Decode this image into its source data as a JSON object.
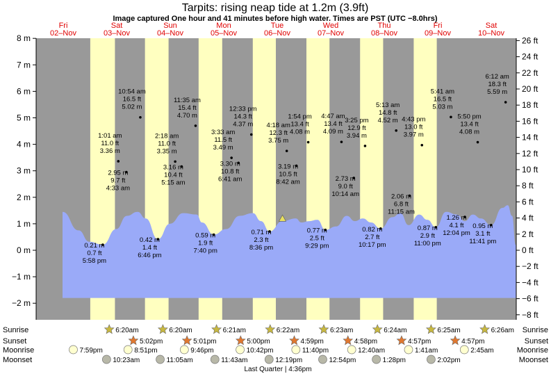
{
  "title": "Tarpits: rising  neap tide at 1.2m (3.9ft)",
  "subtitle": "Image captured One hour and 41 minutes before high water. Times are PST (UTC −8.0hrs)",
  "days": [
    {
      "name": "Fri",
      "date": "02–Nov"
    },
    {
      "name": "Sat",
      "date": "03–Nov"
    },
    {
      "name": "Sun",
      "date": "04–Nov"
    },
    {
      "name": "Mon",
      "date": "05–Nov"
    },
    {
      "name": "Tue",
      "date": "06–Nov"
    },
    {
      "name": "Wed",
      "date": "07–Nov"
    },
    {
      "name": "Thu",
      "date": "08–Nov"
    },
    {
      "name": "Fri",
      "date": "09–Nov"
    },
    {
      "name": "Sat",
      "date": "10–Nov"
    }
  ],
  "colors": {
    "night": "#999999",
    "day": "#ffffc0",
    "water": "#9aaaf8",
    "text_red": "#e00000",
    "sun_star": "#c8b840",
    "sunset_star": "#e07830"
  },
  "chart_data": {
    "type": "area",
    "ylabel_left": "m",
    "ylabel_right": "ft",
    "ylim": [
      -2.5,
      8.0
    ],
    "left_ticks": [
      "−2 m",
      "−1 m",
      "0 m",
      "1 m",
      "2 m",
      "3 m",
      "4 m",
      "5 m",
      "6 m",
      "7 m",
      "8 m"
    ],
    "left_tick_values": [
      -2,
      -1,
      0,
      1,
      2,
      3,
      4,
      5,
      6,
      7,
      8
    ],
    "right_ticks": [
      "−8 ft",
      "−6 ft",
      "−4 ft",
      "−2 ft",
      "0 ft",
      "2 ft",
      "4 ft",
      "6 ft",
      "8 ft",
      "10 ft",
      "12 ft",
      "14 ft",
      "16 ft",
      "18 ft",
      "20 ft",
      "22 ft",
      "24 ft",
      "26 ft"
    ],
    "right_tick_values": [
      -8,
      -6,
      -4,
      -2,
      0,
      2,
      4,
      6,
      8,
      10,
      12,
      14,
      16,
      18,
      20,
      22,
      24,
      26
    ],
    "current_level_m": 1.2,
    "tides": [
      {
        "time": "5:58 pm",
        "ft": "0.7 ft",
        "m": "0.21 m",
        "value": 0.21,
        "t": 0.75,
        "type": "low"
      },
      {
        "time": "1:01 am",
        "ft": "11.0 ft",
        "m": "3.36 m",
        "value": 3.36,
        "t": 1.04,
        "type": "high"
      },
      {
        "time": "4:33 am",
        "ft": "9.7 ft",
        "m": "2.95 m",
        "value": 2.95,
        "t": 1.19,
        "type": "low"
      },
      {
        "time": "10:54 am",
        "ft": "16.5 ft",
        "m": "5.02 m",
        "value": 5.02,
        "t": 1.45,
        "type": "high"
      },
      {
        "time": "6:46 pm",
        "ft": "1.4 ft",
        "m": "0.42 m",
        "value": 0.42,
        "t": 1.78,
        "type": "low"
      },
      {
        "time": "2:18 am",
        "ft": "11.0 ft",
        "m": "3.35 m",
        "value": 3.35,
        "t": 2.1,
        "type": "high"
      },
      {
        "time": "5:15 am",
        "ft": "10.4 ft",
        "m": "3.16 m",
        "value": 3.16,
        "t": 2.22,
        "type": "low"
      },
      {
        "time": "11:35 am",
        "ft": "15.4 ft",
        "m": "4.70 m",
        "value": 4.7,
        "t": 2.48,
        "type": "high"
      },
      {
        "time": "7:40 pm",
        "ft": "1.9 ft",
        "m": "0.59 m",
        "value": 0.59,
        "t": 2.82,
        "type": "low"
      },
      {
        "time": "3:33 am",
        "ft": "11.5 ft",
        "m": "3.49 m",
        "value": 3.49,
        "t": 3.15,
        "type": "high"
      },
      {
        "time": "6:41 am",
        "ft": "10.8 ft",
        "m": "3.30 m",
        "value": 3.3,
        "t": 3.28,
        "type": "low"
      },
      {
        "time": "12:33 pm",
        "ft": "14.3 ft",
        "m": "4.37 m",
        "value": 4.37,
        "t": 3.52,
        "type": "high"
      },
      {
        "time": "8:36 pm",
        "ft": "2.3 ft",
        "m": "0.71 m",
        "value": 0.71,
        "t": 3.86,
        "type": "low"
      },
      {
        "time": "4:18 am",
        "ft": "12.3 ft",
        "m": "3.75 m",
        "value": 3.75,
        "t": 4.18,
        "type": "high"
      },
      {
        "time": "8:42 am",
        "ft": "10.5 ft",
        "m": "3.19 m",
        "value": 3.19,
        "t": 4.36,
        "type": "low"
      },
      {
        "time": "1:54 pm",
        "ft": "13.4 ft",
        "m": "4.08 m",
        "value": 4.08,
        "t": 4.58,
        "type": "high"
      },
      {
        "time": "9:29 pm",
        "ft": "2.5 ft",
        "m": "0.77 m",
        "value": 0.77,
        "t": 4.9,
        "type": "low"
      },
      {
        "time": "4:47 am",
        "ft": "13.4 ft",
        "m": "4.09 m",
        "value": 4.09,
        "t": 5.2,
        "type": "high"
      },
      {
        "time": "10:14 am",
        "ft": "9.0 ft",
        "m": "2.73 m",
        "value": 2.73,
        "t": 5.43,
        "type": "low"
      },
      {
        "time": "3:25 pm",
        "ft": "12.9 ft",
        "m": "3.94 m",
        "value": 3.94,
        "t": 5.64,
        "type": "high"
      },
      {
        "time": "10:17 pm",
        "ft": "2.7 ft",
        "m": "0.82 m",
        "value": 0.82,
        "t": 5.93,
        "type": "low"
      },
      {
        "time": "5:13 am",
        "ft": "14.8 ft",
        "m": "4.52 m",
        "value": 4.52,
        "t": 6.22,
        "type": "high"
      },
      {
        "time": "11:15 am",
        "ft": "6.8 ft",
        "m": "2.06 m",
        "value": 2.06,
        "t": 6.47,
        "type": "low"
      },
      {
        "time": "4:43 pm",
        "ft": "13.0 ft",
        "m": "3.97 m",
        "value": 3.97,
        "t": 6.7,
        "type": "high"
      },
      {
        "time": "11:00 pm",
        "ft": "2.9 ft",
        "m": "0.87 m",
        "value": 0.87,
        "t": 6.96,
        "type": "low"
      },
      {
        "time": "5:41 am",
        "ft": "16.5 ft",
        "m": "5.03 m",
        "value": 5.03,
        "t": 7.24,
        "type": "high"
      },
      {
        "time": "12:04 pm",
        "ft": "4.1 ft",
        "m": "1.26 m",
        "value": 1.26,
        "t": 7.5,
        "type": "low"
      },
      {
        "time": "5:50 pm",
        "ft": "13.4 ft",
        "m": "4.08 m",
        "value": 4.08,
        "t": 7.74,
        "type": "high"
      },
      {
        "time": "11:41 pm",
        "ft": "3.1 ft",
        "m": "0.95 m",
        "value": 0.95,
        "t": 7.99,
        "type": "low"
      },
      {
        "time": "6:12 am",
        "ft": "18.3 ft",
        "m": "5.59 m",
        "value": 5.59,
        "t": 8.26,
        "type": "high"
      }
    ],
    "water_profile": {
      "t": [
        0.0,
        0.3,
        0.5,
        0.75,
        1.0,
        1.2,
        1.4,
        1.55,
        1.78,
        2.0,
        2.25,
        2.5,
        2.6,
        2.82,
        3.05,
        3.3,
        3.55,
        3.7,
        3.86,
        4.1,
        4.35,
        4.45,
        4.6,
        4.75,
        4.9,
        5.1,
        5.3,
        5.45,
        5.6,
        5.75,
        5.93,
        6.15,
        6.3,
        6.45,
        6.65,
        6.8,
        6.96,
        7.15,
        7.35,
        7.5,
        7.65,
        7.8,
        7.99,
        8.2,
        8.3,
        8.38,
        8.45
      ],
      "m": [
        1.45,
        0.75,
        0.32,
        0.21,
        0.8,
        1.3,
        1.45,
        1.2,
        0.42,
        1.0,
        1.4,
        1.35,
        1.05,
        0.59,
        0.8,
        1.3,
        1.4,
        1.1,
        0.71,
        1.1,
        1.2,
        1.05,
        1.1,
        1.15,
        0.77,
        0.9,
        1.3,
        1.1,
        1.2,
        1.05,
        0.82,
        1.25,
        1.4,
        0.95,
        1.35,
        1.15,
        0.87,
        1.45,
        1.35,
        1.1,
        1.35,
        1.2,
        0.95,
        1.6,
        1.7,
        1.3,
        0.2
      ]
    }
  },
  "daylight": [
    {
      "start": 0.0,
      "end": 0.47,
      "kind": "night"
    },
    {
      "start": 0.75,
      "end": 1.21,
      "kind": "day"
    },
    {
      "start": 1.77,
      "end": 2.21,
      "kind": "day"
    },
    {
      "start": 2.77,
      "end": 3.21,
      "kind": "day"
    },
    {
      "start": 3.78,
      "end": 4.21,
      "kind": "day"
    },
    {
      "start": 4.78,
      "end": 5.21,
      "kind": "day"
    },
    {
      "start": 5.78,
      "end": 6.21,
      "kind": "day"
    },
    {
      "start": 6.78,
      "end": 7.21,
      "kind": "day"
    }
  ],
  "almanac": {
    "labels": {
      "sunrise": "Sunrise",
      "sunset": "Sunset",
      "moonrise": "Moonrise",
      "moonset": "Moonset"
    },
    "sunrise": [
      {
        "t": 1.0,
        "text": "6:20am"
      },
      {
        "t": 2.0,
        "text": "6:20am"
      },
      {
        "t": 3.0,
        "text": "6:21am"
      },
      {
        "t": 4.0,
        "text": "6:22am"
      },
      {
        "t": 5.0,
        "text": "6:23am"
      },
      {
        "t": 6.0,
        "text": "6:24am"
      },
      {
        "t": 7.0,
        "text": "6:25am"
      },
      {
        "t": 8.0,
        "text": "6:26am"
      }
    ],
    "sunset": [
      {
        "t": 1.45,
        "text": "5:02pm"
      },
      {
        "t": 2.45,
        "text": "5:01pm"
      },
      {
        "t": 3.45,
        "text": "5:00pm"
      },
      {
        "t": 4.45,
        "text": "4:59pm"
      },
      {
        "t": 5.45,
        "text": "4:58pm"
      },
      {
        "t": 6.45,
        "text": "4:57pm"
      },
      {
        "t": 7.45,
        "text": "4:57pm"
      }
    ],
    "moonrise": [
      {
        "t": 0.33,
        "text": "7:59pm"
      },
      {
        "t": 1.35,
        "text": "8:51pm"
      },
      {
        "t": 2.4,
        "text": "9:46pm"
      },
      {
        "t": 3.44,
        "text": "10:42pm"
      },
      {
        "t": 4.48,
        "text": "11:40pm"
      },
      {
        "t": 5.52,
        "text": "12:40am"
      },
      {
        "t": 6.58,
        "text": "1:41am"
      },
      {
        "t": 7.62,
        "text": "2:45am"
      }
    ],
    "moonset": [
      {
        "t": 0.95,
        "text": "10:23am"
      },
      {
        "t": 1.95,
        "text": "11:05am"
      },
      {
        "t": 2.97,
        "text": "11:43am"
      },
      {
        "t": 3.98,
        "text": "12:19pm"
      },
      {
        "t": 4.98,
        "text": "12:54pm"
      },
      {
        "t": 5.98,
        "text": "1:28pm"
      },
      {
        "t": 7.0,
        "text": "2:02pm"
      }
    ],
    "moon_phase": "Last Quarter | 4:36pm"
  }
}
